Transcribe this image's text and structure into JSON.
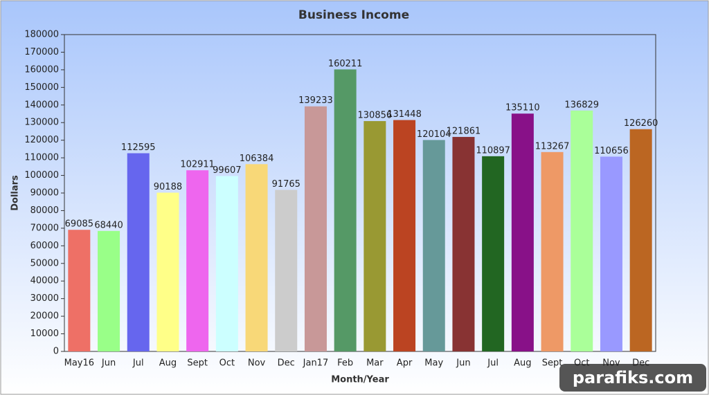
{
  "chart_data": {
    "type": "bar",
    "title": "Business Income",
    "y_label": "Dollars",
    "x_label": "Month/Year",
    "categories": [
      "May16",
      "Jun",
      "Jul",
      "Aug",
      "Sept",
      "Oct",
      "Nov",
      "Dec",
      "Jan17",
      "Feb",
      "Mar",
      "Apr",
      "May",
      "Jun",
      "Jul",
      "Aug",
      "Sept",
      "Oct",
      "Nov",
      "Dec"
    ],
    "values": [
      69085,
      68440,
      112595,
      90188,
      102911,
      99607,
      106384,
      91765,
      139233,
      160211,
      130856,
      131448,
      120104,
      121861,
      110897,
      135110,
      113267,
      136829,
      110656,
      126260
    ],
    "colors": [
      "#ee7066",
      "#99ff88",
      "#6666ee",
      "#ffff88",
      "#ee66ee",
      "#ccffff",
      "#f8d878",
      "#cccccc",
      "#c89898",
      "#559966",
      "#999933",
      "#bb4422",
      "#669999",
      "#883333",
      "#226622",
      "#881188",
      "#ee9966",
      "#aaff99",
      "#9999ff",
      "#bb6622"
    ],
    "ylim": [
      0,
      180000
    ],
    "yticks": [
      0,
      10000,
      20000,
      30000,
      40000,
      50000,
      60000,
      70000,
      80000,
      90000,
      100000,
      110000,
      120000,
      130000,
      140000,
      150000,
      160000,
      170000,
      180000
    ],
    "watermark": "parafiks.com"
  }
}
